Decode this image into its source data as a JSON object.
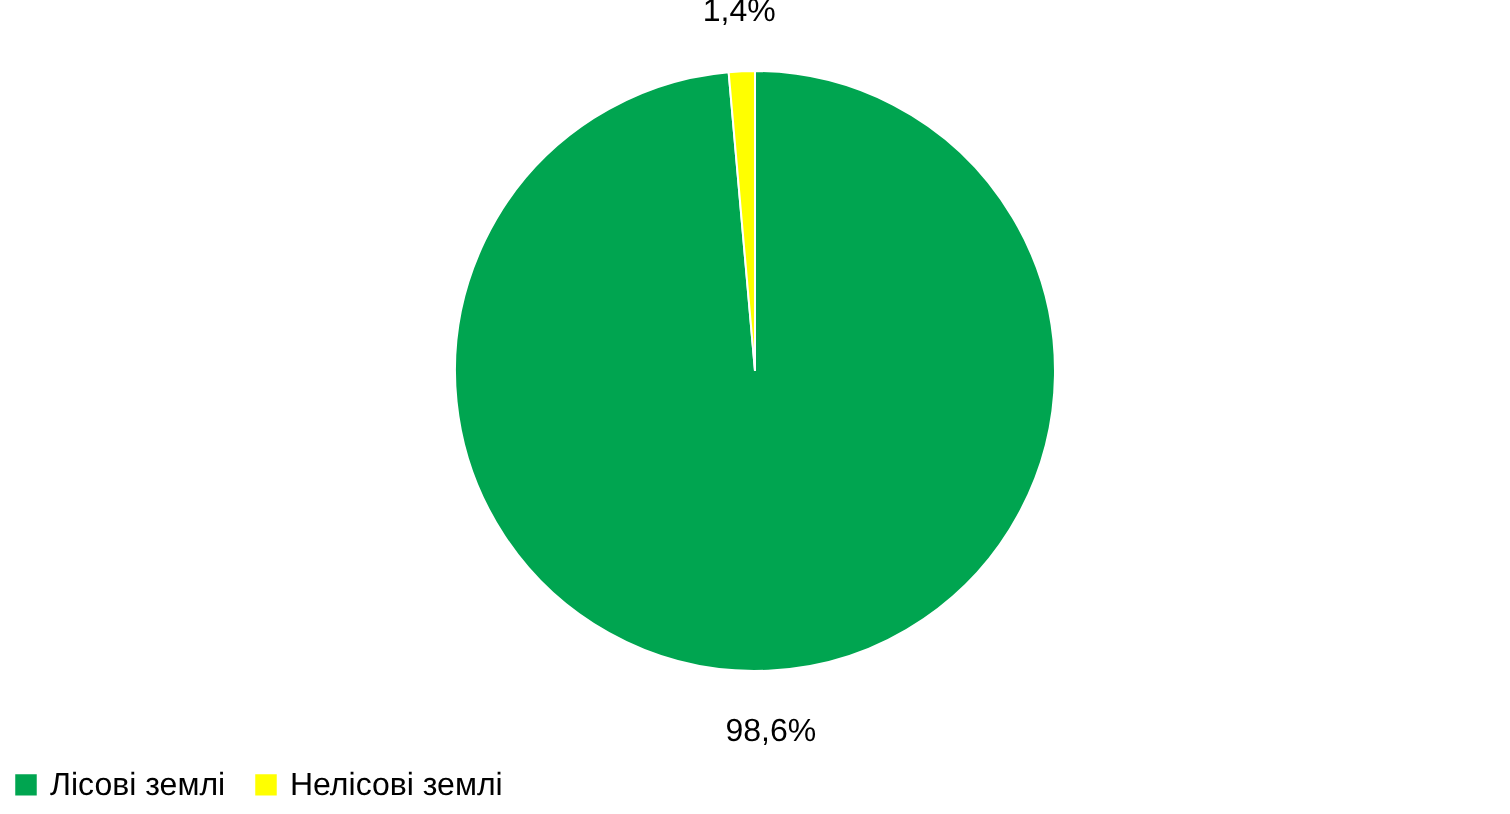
{
  "chart_data": {
    "type": "pie",
    "categories": [
      "Лісові землі",
      "Нелісові землі"
    ],
    "values": [
      98.6,
      1.4
    ],
    "colors": [
      "#00a550",
      "#ffff00"
    ],
    "value_labels": [
      "98,6%",
      "1,4%"
    ],
    "legend": "bottom"
  }
}
